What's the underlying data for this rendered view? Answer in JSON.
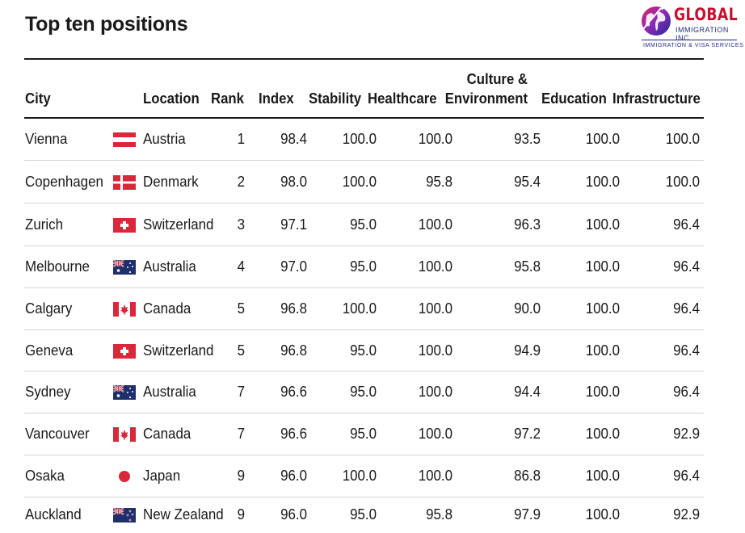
{
  "title": "Top ten positions",
  "logo": {
    "brand": "GLOBAL",
    "line1": "IMMIGRATION INC",
    "line2": "IMMIGRATION & VISA SERVICES"
  },
  "columns": {
    "city": "City",
    "location": "Location",
    "rank": "Rank",
    "index": "Index",
    "stability": "Stability",
    "healthcare": "Healthcare",
    "culture_line1": "Culture &",
    "culture_line2": "Environment",
    "education": "Education",
    "infrastructure": "Infrastructure"
  },
  "rows": [
    {
      "city": "Vienna",
      "flag": "austria-flag",
      "location": "Austria",
      "rank": "1",
      "index": "98.4",
      "stability": "100.0",
      "healthcare": "100.0",
      "culture": "93.5",
      "education": "100.0",
      "infrastructure": "100.0"
    },
    {
      "city": "Copenhagen",
      "flag": "denmark-flag",
      "location": "Denmark",
      "rank": "2",
      "index": "98.0",
      "stability": "100.0",
      "healthcare": "95.8",
      "culture": "95.4",
      "education": "100.0",
      "infrastructure": "100.0"
    },
    {
      "city": "Zurich",
      "flag": "switzerland-flag",
      "location": "Switzerland",
      "rank": "3",
      "index": "97.1",
      "stability": "95.0",
      "healthcare": "100.0",
      "culture": "96.3",
      "education": "100.0",
      "infrastructure": "96.4"
    },
    {
      "city": "Melbourne",
      "flag": "australia-flag",
      "location": "Australia",
      "rank": "4",
      "index": "97.0",
      "stability": "95.0",
      "healthcare": "100.0",
      "culture": "95.8",
      "education": "100.0",
      "infrastructure": "96.4"
    },
    {
      "city": "Calgary",
      "flag": "canada-flag",
      "location": "Canada",
      "rank": "5",
      "index": "96.8",
      "stability": "100.0",
      "healthcare": "100.0",
      "culture": "90.0",
      "education": "100.0",
      "infrastructure": "96.4"
    },
    {
      "city": "Geneva",
      "flag": "switzerland-flag",
      "location": "Switzerland",
      "rank": "5",
      "index": "96.8",
      "stability": "95.0",
      "healthcare": "100.0",
      "culture": "94.9",
      "education": "100.0",
      "infrastructure": "96.4"
    },
    {
      "city": "Sydney",
      "flag": "australia-flag",
      "location": "Australia",
      "rank": "7",
      "index": "96.6",
      "stability": "95.0",
      "healthcare": "100.0",
      "culture": "94.4",
      "education": "100.0",
      "infrastructure": "96.4"
    },
    {
      "city": "Vancouver",
      "flag": "canada-flag",
      "location": "Canada",
      "rank": "7",
      "index": "96.6",
      "stability": "95.0",
      "healthcare": "100.0",
      "culture": "97.2",
      "education": "100.0",
      "infrastructure": "92.9"
    },
    {
      "city": "Osaka",
      "flag": "japan-flag",
      "location": "Japan",
      "rank": "9",
      "index": "96.0",
      "stability": "100.0",
      "healthcare": "100.0",
      "culture": "86.8",
      "education": "100.0",
      "infrastructure": "96.4"
    },
    {
      "city": "Auckland",
      "flag": "new-zealand-flag",
      "location": "New Zealand",
      "rank": "9",
      "index": "96.0",
      "stability": "95.0",
      "healthcare": "95.8",
      "culture": "97.9",
      "education": "100.0",
      "infrastructure": "92.9"
    }
  ],
  "chart_data": {
    "type": "table",
    "title": "Top ten positions",
    "columns": [
      "City",
      "Location",
      "Rank",
      "Index",
      "Stability",
      "Healthcare",
      "Culture & Environment",
      "Education",
      "Infrastructure"
    ],
    "rows": [
      [
        "Vienna",
        "Austria",
        1,
        98.4,
        100.0,
        100.0,
        93.5,
        100.0,
        100.0
      ],
      [
        "Copenhagen",
        "Denmark",
        2,
        98.0,
        100.0,
        95.8,
        95.4,
        100.0,
        100.0
      ],
      [
        "Zurich",
        "Switzerland",
        3,
        97.1,
        95.0,
        100.0,
        96.3,
        100.0,
        96.4
      ],
      [
        "Melbourne",
        "Australia",
        4,
        97.0,
        95.0,
        100.0,
        95.8,
        100.0,
        96.4
      ],
      [
        "Calgary",
        "Canada",
        5,
        96.8,
        100.0,
        100.0,
        90.0,
        100.0,
        96.4
      ],
      [
        "Geneva",
        "Switzerland",
        5,
        96.8,
        95.0,
        100.0,
        94.9,
        100.0,
        96.4
      ],
      [
        "Sydney",
        "Australia",
        7,
        96.6,
        95.0,
        100.0,
        94.4,
        100.0,
        96.4
      ],
      [
        "Vancouver",
        "Canada",
        7,
        96.6,
        95.0,
        100.0,
        97.2,
        100.0,
        92.9
      ],
      [
        "Osaka",
        "Japan",
        9,
        96.0,
        100.0,
        100.0,
        86.8,
        100.0,
        96.4
      ],
      [
        "Auckland",
        "New Zealand",
        9,
        96.0,
        95.0,
        95.8,
        97.9,
        100.0,
        92.9
      ]
    ]
  },
  "colors": {
    "flag_red": "#d8283a",
    "rule": "#1a1a1a",
    "separator": "#d4d4d4",
    "brand_red": "#c8102e",
    "brand_blue": "#1f2a7a",
    "aus_blue": "#1e2f6b"
  }
}
